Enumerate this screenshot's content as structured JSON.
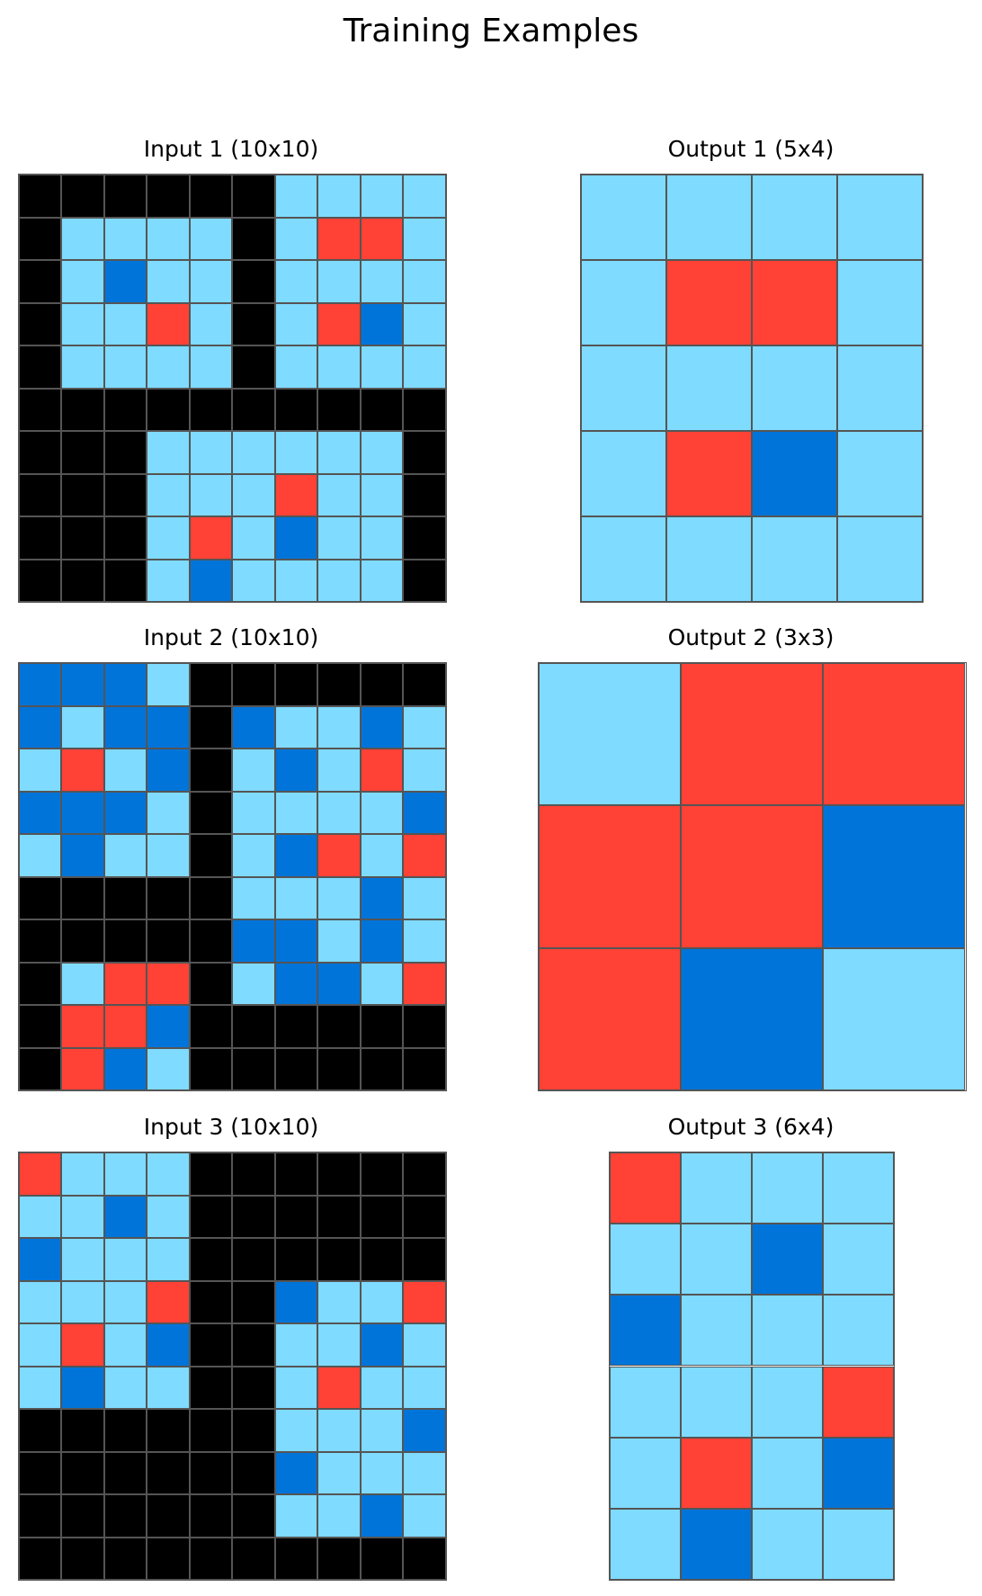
{
  "title": "Training Examples",
  "palette": {
    "0": "#000000",
    "1": "#0074D9",
    "2": "#FF4136",
    "8": "#7FDBFF"
  },
  "gridline_color": "#555555",
  "examples": [
    {
      "input": {
        "label": "Input 1 (10x10)",
        "grid": [
          [
            0,
            0,
            0,
            0,
            0,
            0,
            8,
            8,
            8,
            8
          ],
          [
            0,
            8,
            8,
            8,
            8,
            0,
            8,
            2,
            2,
            8
          ],
          [
            0,
            8,
            1,
            8,
            8,
            0,
            8,
            8,
            8,
            8
          ],
          [
            0,
            8,
            8,
            2,
            8,
            0,
            8,
            2,
            1,
            8
          ],
          [
            0,
            8,
            8,
            8,
            8,
            0,
            8,
            8,
            8,
            8
          ],
          [
            0,
            0,
            0,
            0,
            0,
            0,
            0,
            0,
            0,
            0
          ],
          [
            0,
            0,
            0,
            8,
            8,
            8,
            8,
            8,
            8,
            0
          ],
          [
            0,
            0,
            0,
            8,
            8,
            8,
            2,
            8,
            8,
            0
          ],
          [
            0,
            0,
            0,
            8,
            2,
            8,
            1,
            8,
            8,
            0
          ],
          [
            0,
            0,
            0,
            8,
            1,
            8,
            8,
            8,
            8,
            0
          ]
        ]
      },
      "output": {
        "label": "Output 1 (5x4)",
        "grid": [
          [
            8,
            8,
            8,
            8
          ],
          [
            8,
            2,
            2,
            8
          ],
          [
            8,
            8,
            8,
            8
          ],
          [
            8,
            2,
            1,
            8
          ],
          [
            8,
            8,
            8,
            8
          ]
        ]
      }
    },
    {
      "input": {
        "label": "Input 2 (10x10)",
        "grid": [
          [
            1,
            1,
            1,
            8,
            0,
            0,
            0,
            0,
            0,
            0
          ],
          [
            1,
            8,
            1,
            1,
            0,
            1,
            8,
            8,
            1,
            8
          ],
          [
            8,
            2,
            8,
            1,
            0,
            8,
            1,
            8,
            2,
            8
          ],
          [
            1,
            1,
            1,
            8,
            0,
            8,
            8,
            8,
            8,
            1
          ],
          [
            8,
            1,
            8,
            8,
            0,
            8,
            1,
            2,
            8,
            2
          ],
          [
            0,
            0,
            0,
            0,
            0,
            8,
            8,
            8,
            1,
            8
          ],
          [
            0,
            0,
            0,
            0,
            0,
            1,
            1,
            8,
            1,
            8
          ],
          [
            0,
            8,
            2,
            2,
            0,
            8,
            1,
            1,
            8,
            2
          ],
          [
            0,
            2,
            2,
            1,
            0,
            0,
            0,
            0,
            0,
            0
          ],
          [
            0,
            2,
            1,
            8,
            0,
            0,
            0,
            0,
            0,
            0
          ]
        ]
      },
      "output": {
        "label": "Output 2 (3x3)",
        "grid": [
          [
            8,
            2,
            2
          ],
          [
            2,
            2,
            1
          ],
          [
            2,
            1,
            8
          ]
        ]
      }
    },
    {
      "input": {
        "label": "Input 3 (10x10)",
        "grid": [
          [
            2,
            8,
            8,
            8,
            0,
            0,
            0,
            0,
            0,
            0
          ],
          [
            8,
            8,
            1,
            8,
            0,
            0,
            0,
            0,
            0,
            0
          ],
          [
            1,
            8,
            8,
            8,
            0,
            0,
            0,
            0,
            0,
            0
          ],
          [
            8,
            8,
            8,
            2,
            0,
            0,
            1,
            8,
            8,
            2
          ],
          [
            8,
            2,
            8,
            1,
            0,
            0,
            8,
            8,
            1,
            8
          ],
          [
            8,
            1,
            8,
            8,
            0,
            0,
            8,
            2,
            8,
            8
          ],
          [
            0,
            0,
            0,
            0,
            0,
            0,
            8,
            8,
            8,
            1
          ],
          [
            0,
            0,
            0,
            0,
            0,
            0,
            1,
            8,
            8,
            8
          ],
          [
            0,
            0,
            0,
            0,
            0,
            0,
            8,
            8,
            1,
            8
          ],
          [
            0,
            0,
            0,
            0,
            0,
            0,
            0,
            0,
            0,
            0
          ]
        ]
      },
      "output": {
        "label": "Output 3 (6x4)",
        "grid": [
          [
            2,
            8,
            8,
            8
          ],
          [
            8,
            8,
            1,
            8
          ],
          [
            1,
            8,
            8,
            8
          ],
          [
            8,
            8,
            8,
            2
          ],
          [
            8,
            2,
            8,
            1
          ],
          [
            8,
            1,
            8,
            8
          ]
        ]
      }
    }
  ]
}
